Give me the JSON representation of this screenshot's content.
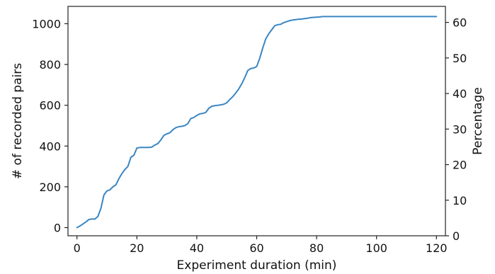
{
  "chart_data": {
    "type": "line",
    "title": "",
    "xlabel": "Experiment duration (min)",
    "ylabel": "# of recorded pairs",
    "ylabel_right": "Percentage",
    "xlim": [
      -3,
      123
    ],
    "ylim": [
      -40,
      1085
    ],
    "ylim_right": [
      0,
      64.5
    ],
    "x_ticks": [
      0,
      20,
      40,
      60,
      80,
      100,
      120
    ],
    "y_ticks": [
      0,
      200,
      400,
      600,
      800,
      1000
    ],
    "y_ticks_right": [
      0,
      10,
      20,
      30,
      40,
      50,
      60
    ],
    "grid": false,
    "line_color": "#3a86c2",
    "series": [
      {
        "x": [
          0,
          1,
          2,
          3,
          4,
          5,
          6,
          7,
          8,
          9,
          10,
          11,
          12,
          13,
          14,
          15,
          16,
          17,
          18,
          19,
          20,
          21,
          22,
          23,
          24,
          25,
          26,
          27,
          28,
          29,
          30,
          31,
          32,
          33,
          34,
          35,
          36,
          37,
          38,
          39,
          40,
          41,
          42,
          43,
          44,
          45,
          46,
          47,
          48,
          49,
          50,
          51,
          52,
          53,
          54,
          55,
          56,
          57,
          58,
          59,
          60,
          61,
          62,
          63,
          64,
          65,
          66,
          67,
          68,
          69,
          70,
          71,
          72,
          73,
          74,
          75,
          76,
          77,
          78,
          79,
          80,
          81,
          82,
          83,
          84,
          120
        ],
        "y": [
          0,
          8,
          18,
          28,
          40,
          42,
          42,
          55,
          95,
          160,
          180,
          185,
          200,
          210,
          240,
          265,
          285,
          300,
          345,
          355,
          390,
          393,
          393,
          393,
          393,
          395,
          405,
          412,
          430,
          452,
          460,
          465,
          480,
          490,
          495,
          497,
          500,
          510,
          535,
          540,
          550,
          558,
          560,
          565,
          585,
          595,
          598,
          600,
          602,
          605,
          612,
          628,
          642,
          660,
          680,
          705,
          735,
          770,
          780,
          783,
          790,
          830,
          880,
          925,
          950,
          970,
          990,
          995,
          997,
          1005,
          1010,
          1015,
          1018,
          1020,
          1022,
          1023,
          1025,
          1027,
          1030,
          1031,
          1032,
          1033,
          1035,
          1035,
          1035,
          1035
        ]
      }
    ]
  }
}
